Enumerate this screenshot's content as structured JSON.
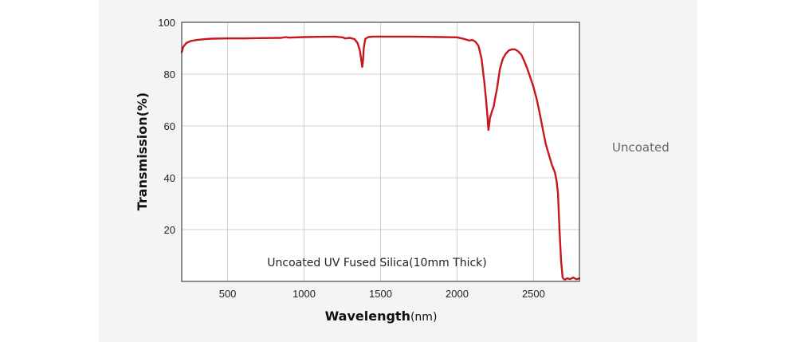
{
  "side_label": "Uncoated",
  "chart_data": {
    "type": "line",
    "title": "",
    "annotation": "Uncoated UV Fused Silica(10mm Thick)",
    "xlabel_main": "Wavelength",
    "xlabel_unit": "(nm)",
    "ylabel": "Transmission(%)",
    "xlim": [
      200,
      2800
    ],
    "ylim": [
      0,
      100
    ],
    "x_ticks": [
      500,
      1000,
      1500,
      2000,
      2500
    ],
    "y_ticks": [
      20,
      40,
      60,
      80,
      100
    ],
    "grid": true,
    "line_color": "#c8161e",
    "series": [
      {
        "x": [
          200,
          210,
          230,
          260,
          300,
          350,
          400,
          500,
          600,
          700,
          850,
          880,
          900,
          1000,
          1100,
          1200,
          1250,
          1270,
          1300,
          1330,
          1350,
          1365,
          1375,
          1380,
          1385,
          1390,
          1400,
          1420,
          1450,
          1500,
          1600,
          1700,
          1800,
          1900,
          2000,
          2050,
          2080,
          2100,
          2120,
          2140,
          2160,
          2180,
          2190,
          2200,
          2205,
          2210,
          2215,
          2220,
          2230,
          2240,
          2250,
          2260,
          2270,
          2280,
          2300,
          2320,
          2340,
          2360,
          2380,
          2400,
          2420,
          2440,
          2460,
          2480,
          2500,
          2520,
          2540,
          2560,
          2580,
          2600,
          2620,
          2640,
          2650,
          2660,
          2670,
          2680,
          2690,
          2700,
          2710,
          2720,
          2740,
          2760,
          2780,
          2800
        ],
        "y": [
          88.5,
          90.5,
          92,
          92.8,
          93.2,
          93.5,
          93.7,
          93.8,
          93.8,
          93.9,
          94,
          94.3,
          94.1,
          94.3,
          94.4,
          94.5,
          94.2,
          93.8,
          94,
          93.5,
          92,
          89,
          85,
          82.8,
          85,
          90,
          93.6,
          94.3,
          94.5,
          94.5,
          94.5,
          94.5,
          94.4,
          94.3,
          94.2,
          93.5,
          93,
          93.2,
          92.5,
          91,
          86,
          76,
          70,
          63,
          58.5,
          60.5,
          63,
          64,
          66,
          67.5,
          71,
          74,
          78,
          82,
          86,
          88,
          89.2,
          89.6,
          89.5,
          88.8,
          87.5,
          85,
          82,
          78.5,
          75,
          70.5,
          65,
          59,
          53,
          49,
          45,
          42,
          39,
          34,
          20,
          8,
          1.5,
          0.8,
          0.8,
          1.2,
          0.9,
          1.5,
          0.8,
          1.2
        ]
      }
    ]
  }
}
